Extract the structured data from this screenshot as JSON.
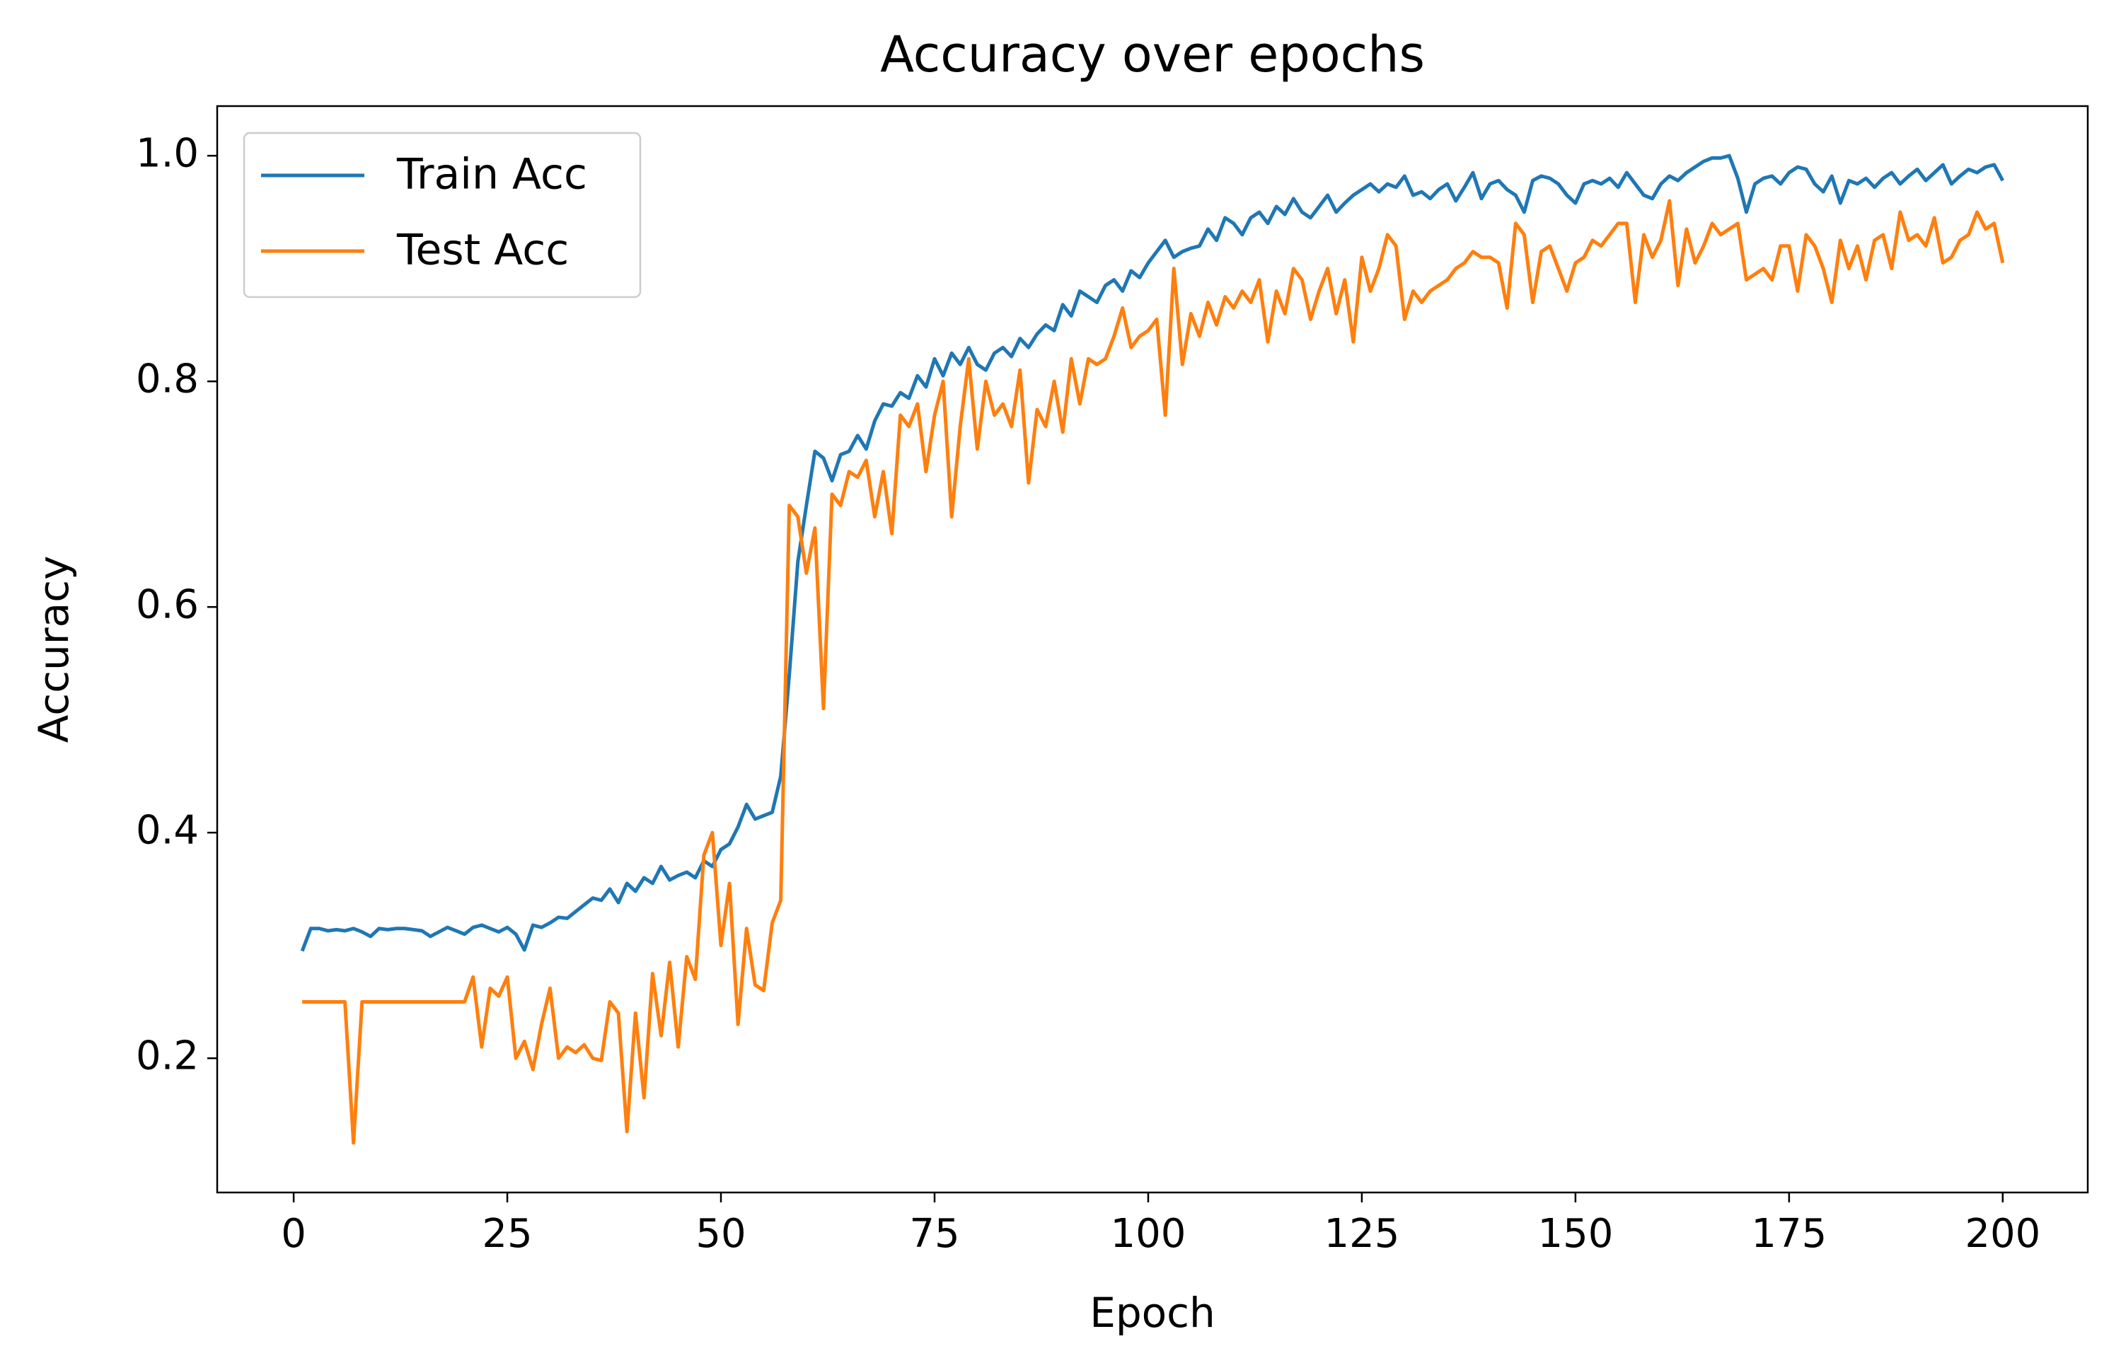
{
  "chart_data": {
    "type": "line",
    "title": "Accuracy over epochs",
    "x_label": "Epoch",
    "y_label": "Accuracy",
    "x": [
      1,
      2,
      3,
      4,
      5,
      6,
      7,
      8,
      9,
      10,
      11,
      12,
      13,
      14,
      15,
      16,
      17,
      18,
      19,
      20,
      21,
      22,
      23,
      24,
      25,
      26,
      27,
      28,
      29,
      30,
      31,
      32,
      33,
      34,
      35,
      36,
      37,
      38,
      39,
      40,
      41,
      42,
      43,
      44,
      45,
      46,
      47,
      48,
      49,
      50,
      51,
      52,
      53,
      54,
      55,
      56,
      57,
      58,
      59,
      60,
      61,
      62,
      63,
      64,
      65,
      66,
      67,
      68,
      69,
      70,
      71,
      72,
      73,
      74,
      75,
      76,
      77,
      78,
      79,
      80,
      81,
      82,
      83,
      84,
      85,
      86,
      87,
      88,
      89,
      90,
      91,
      92,
      93,
      94,
      95,
      96,
      97,
      98,
      99,
      100,
      101,
      102,
      103,
      104,
      105,
      106,
      107,
      108,
      109,
      110,
      111,
      112,
      113,
      114,
      115,
      116,
      117,
      118,
      119,
      120,
      121,
      122,
      123,
      124,
      125,
      126,
      127,
      128,
      129,
      130,
      131,
      132,
      133,
      134,
      135,
      136,
      137,
      138,
      139,
      140,
      141,
      142,
      143,
      144,
      145,
      146,
      147,
      148,
      149,
      150,
      151,
      152,
      153,
      154,
      155,
      156,
      157,
      158,
      159,
      160,
      161,
      162,
      163,
      164,
      165,
      166,
      167,
      168,
      169,
      170,
      171,
      172,
      173,
      174,
      175,
      176,
      177,
      178,
      179,
      180,
      181,
      182,
      183,
      184,
      185,
      186,
      187,
      188,
      189,
      190,
      191,
      192,
      193,
      194,
      195,
      196,
      197,
      198,
      199,
      200
    ],
    "series": [
      {
        "name": "Train Acc",
        "color": "#1f77b4",
        "values": [
          0.295,
          0.315,
          0.315,
          0.313,
          0.314,
          0.313,
          0.315,
          0.312,
          0.308,
          0.315,
          0.314,
          0.315,
          0.315,
          0.314,
          0.313,
          0.308,
          0.312,
          0.316,
          0.313,
          0.31,
          0.316,
          0.318,
          0.315,
          0.312,
          0.316,
          0.31,
          0.296,
          0.318,
          0.316,
          0.32,
          0.325,
          0.324,
          0.33,
          0.336,
          0.342,
          0.34,
          0.35,
          0.338,
          0.355,
          0.348,
          0.36,
          0.355,
          0.37,
          0.358,
          0.362,
          0.365,
          0.36,
          0.375,
          0.37,
          0.385,
          0.39,
          0.405,
          0.425,
          0.412,
          0.415,
          0.418,
          0.45,
          0.54,
          0.64,
          0.69,
          0.738,
          0.732,
          0.712,
          0.735,
          0.738,
          0.752,
          0.74,
          0.765,
          0.78,
          0.778,
          0.79,
          0.785,
          0.805,
          0.795,
          0.82,
          0.805,
          0.825,
          0.815,
          0.83,
          0.815,
          0.81,
          0.825,
          0.83,
          0.822,
          0.838,
          0.83,
          0.842,
          0.85,
          0.845,
          0.868,
          0.858,
          0.88,
          0.875,
          0.87,
          0.885,
          0.89,
          0.88,
          0.898,
          0.892,
          0.905,
          0.915,
          0.925,
          0.91,
          0.915,
          0.918,
          0.92,
          0.935,
          0.925,
          0.945,
          0.94,
          0.93,
          0.945,
          0.95,
          0.94,
          0.955,
          0.948,
          0.962,
          0.95,
          0.945,
          0.955,
          0.965,
          0.95,
          0.958,
          0.965,
          0.97,
          0.975,
          0.968,
          0.975,
          0.972,
          0.982,
          0.965,
          0.968,
          0.962,
          0.97,
          0.975,
          0.96,
          0.972,
          0.985,
          0.962,
          0.975,
          0.978,
          0.97,
          0.965,
          0.95,
          0.978,
          0.982,
          0.98,
          0.975,
          0.965,
          0.958,
          0.975,
          0.978,
          0.975,
          0.98,
          0.972,
          0.985,
          0.975,
          0.965,
          0.962,
          0.975,
          0.982,
          0.978,
          0.985,
          0.99,
          0.995,
          0.998,
          0.998,
          1.0,
          0.98,
          0.95,
          0.975,
          0.98,
          0.982,
          0.975,
          0.985,
          0.99,
          0.988,
          0.975,
          0.968,
          0.982,
          0.958,
          0.978,
          0.975,
          0.98,
          0.972,
          0.98,
          0.985,
          0.975,
          0.982,
          0.988,
          0.978,
          0.985,
          0.992,
          0.975,
          0.982,
          0.988,
          0.985,
          0.99,
          0.992,
          0.978
        ]
      },
      {
        "name": "Test Acc",
        "color": "#ff7f0e",
        "values": [
          0.25,
          0.25,
          0.25,
          0.25,
          0.25,
          0.25,
          0.125,
          0.25,
          0.25,
          0.25,
          0.25,
          0.25,
          0.25,
          0.25,
          0.25,
          0.25,
          0.25,
          0.25,
          0.25,
          0.25,
          0.272,
          0.21,
          0.262,
          0.255,
          0.272,
          0.2,
          0.215,
          0.19,
          0.23,
          0.262,
          0.2,
          0.21,
          0.205,
          0.212,
          0.2,
          0.198,
          0.25,
          0.24,
          0.135,
          0.24,
          0.165,
          0.275,
          0.22,
          0.285,
          0.21,
          0.29,
          0.27,
          0.38,
          0.4,
          0.3,
          0.355,
          0.23,
          0.315,
          0.265,
          0.26,
          0.32,
          0.34,
          0.69,
          0.68,
          0.63,
          0.67,
          0.51,
          0.7,
          0.69,
          0.72,
          0.715,
          0.73,
          0.68,
          0.72,
          0.665,
          0.77,
          0.76,
          0.78,
          0.72,
          0.77,
          0.8,
          0.68,
          0.76,
          0.82,
          0.74,
          0.8,
          0.77,
          0.78,
          0.76,
          0.81,
          0.71,
          0.775,
          0.76,
          0.8,
          0.755,
          0.82,
          0.78,
          0.82,
          0.815,
          0.82,
          0.84,
          0.865,
          0.83,
          0.84,
          0.845,
          0.855,
          0.77,
          0.9,
          0.815,
          0.86,
          0.84,
          0.87,
          0.85,
          0.875,
          0.865,
          0.88,
          0.87,
          0.89,
          0.835,
          0.88,
          0.86,
          0.9,
          0.89,
          0.855,
          0.88,
          0.9,
          0.86,
          0.89,
          0.835,
          0.91,
          0.88,
          0.9,
          0.93,
          0.92,
          0.855,
          0.88,
          0.87,
          0.88,
          0.885,
          0.89,
          0.9,
          0.905,
          0.915,
          0.91,
          0.91,
          0.905,
          0.865,
          0.94,
          0.93,
          0.87,
          0.915,
          0.92,
          0.9,
          0.88,
          0.905,
          0.91,
          0.925,
          0.92,
          0.93,
          0.94,
          0.94,
          0.87,
          0.93,
          0.91,
          0.925,
          0.96,
          0.885,
          0.935,
          0.905,
          0.92,
          0.94,
          0.93,
          0.935,
          0.94,
          0.89,
          0.895,
          0.9,
          0.89,
          0.92,
          0.92,
          0.88,
          0.93,
          0.92,
          0.9,
          0.87,
          0.925,
          0.9,
          0.92,
          0.89,
          0.925,
          0.93,
          0.9,
          0.95,
          0.925,
          0.93,
          0.92,
          0.945,
          0.905,
          0.91,
          0.925,
          0.93,
          0.95,
          0.935,
          0.94,
          0.905
        ]
      }
    ],
    "xlim": [
      -8.95,
      209.95
    ],
    "xticks": [
      0,
      25,
      50,
      75,
      100,
      125,
      150,
      175,
      200
    ],
    "ylim": [
      0.081,
      1.044
    ],
    "yticks": [
      0.2,
      0.4,
      0.6,
      0.8,
      {
        "value": 1,
        "label": "1.0"
      }
    ],
    "grid": false,
    "legend": "upper left"
  }
}
